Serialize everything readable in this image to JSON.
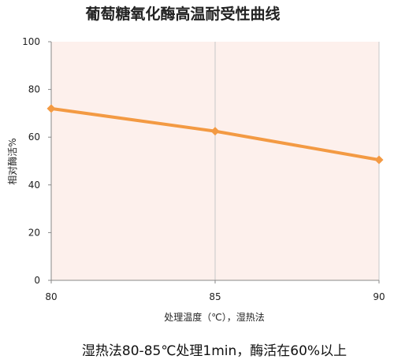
{
  "chart_data": {
    "type": "line",
    "title": "葡萄糖氧化酶高温耐受性曲线",
    "xlabel": "处理温度（℃），湿热法",
    "ylabel": "相对酶活%",
    "x": [
      80,
      85,
      90
    ],
    "series": [
      {
        "values": [
          72,
          62.5,
          50.5
        ]
      }
    ],
    "xlim": [
      80,
      90
    ],
    "ylim": [
      0,
      100
    ],
    "x_ticks": [
      "80",
      "85",
      "90"
    ],
    "y_ticks": [
      "0",
      "20",
      "40",
      "60",
      "80",
      "100"
    ],
    "grid": "vertical",
    "legend": "none",
    "plot_background": "#fdf0ec",
    "line_color": "#f39a43",
    "caption": "湿热法80-85℃处理1min，酶活在60%以上"
  }
}
